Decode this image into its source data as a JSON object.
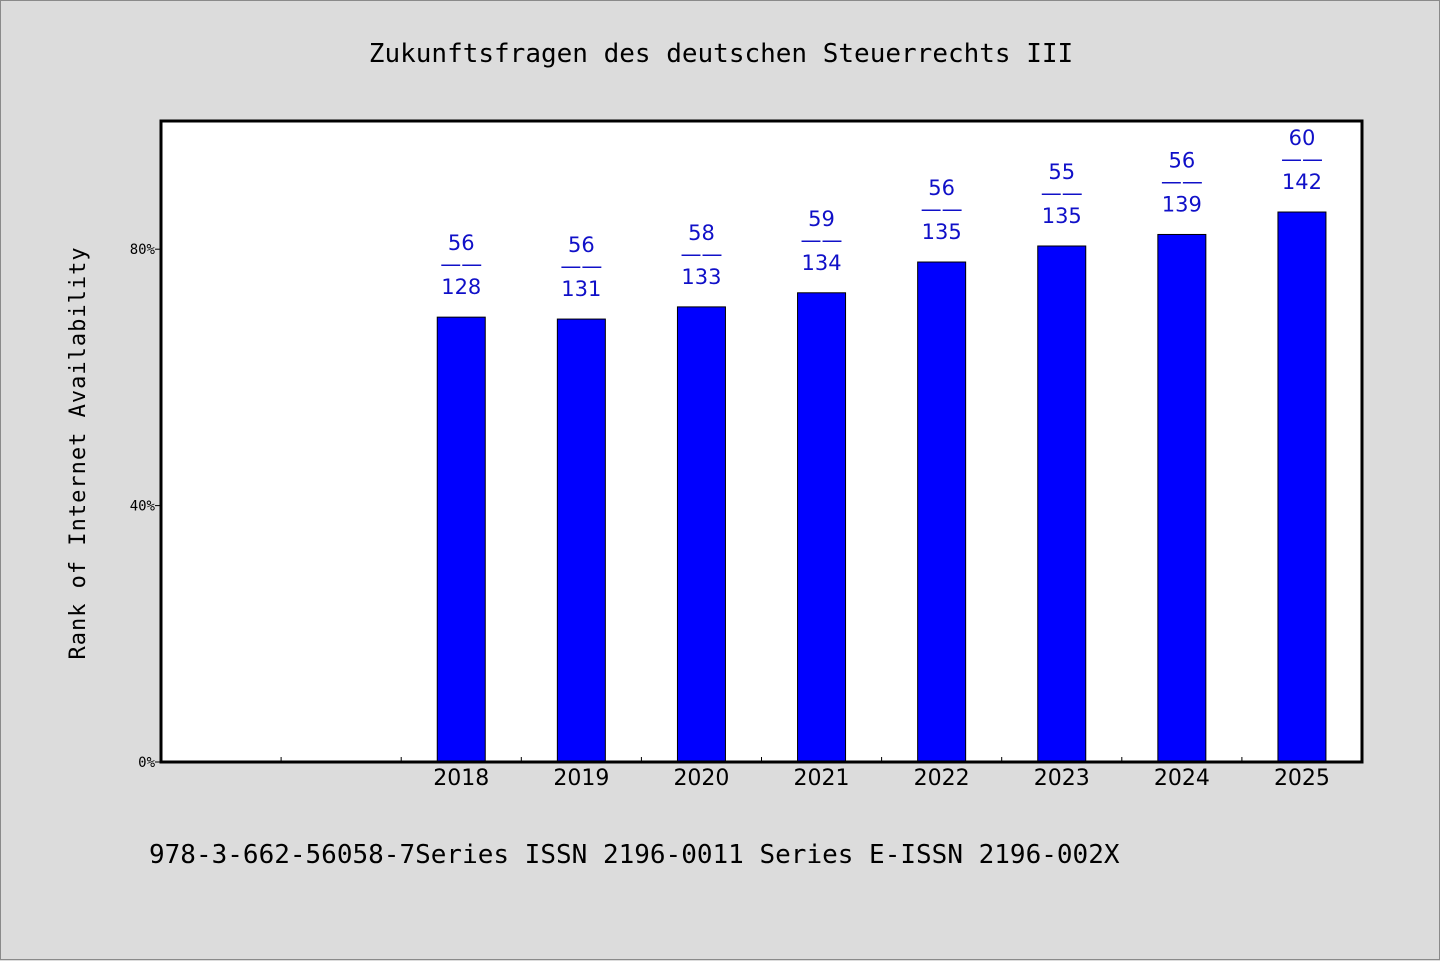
{
  "chart_data": {
    "type": "bar",
    "title": "Zukunftsfragen des deutschen Steuerrechts III",
    "xlabel": "",
    "ylabel": "Rank of Internet Availability",
    "ylim": [
      0,
      100
    ],
    "yticks": [
      0,
      40,
      80
    ],
    "ytick_labels": [
      "0%",
      "40%",
      "80%"
    ],
    "slots": 10,
    "first_category_slot": 2,
    "categories": [
      "2018",
      "2019",
      "2020",
      "2021",
      "2022",
      "2023",
      "2024",
      "2025"
    ],
    "values": [
      69.4,
      69.1,
      71.0,
      73.2,
      78.0,
      80.5,
      82.3,
      85.8
    ],
    "label_top": [
      "56",
      "56",
      "58",
      "59",
      "56",
      "55",
      "56",
      "60"
    ],
    "label_bottom": [
      "128",
      "131",
      "133",
      "134",
      "135",
      "135",
      "139",
      "142"
    ],
    "label_separator": "——",
    "bar_color": "#0000ff",
    "label_color": "#1010c8",
    "grid": false,
    "legend": "none"
  },
  "footer": {
    "text": "978-3-662-56058-7Series ISSN 2196-0011 Series E-ISSN 2196-002X"
  }
}
